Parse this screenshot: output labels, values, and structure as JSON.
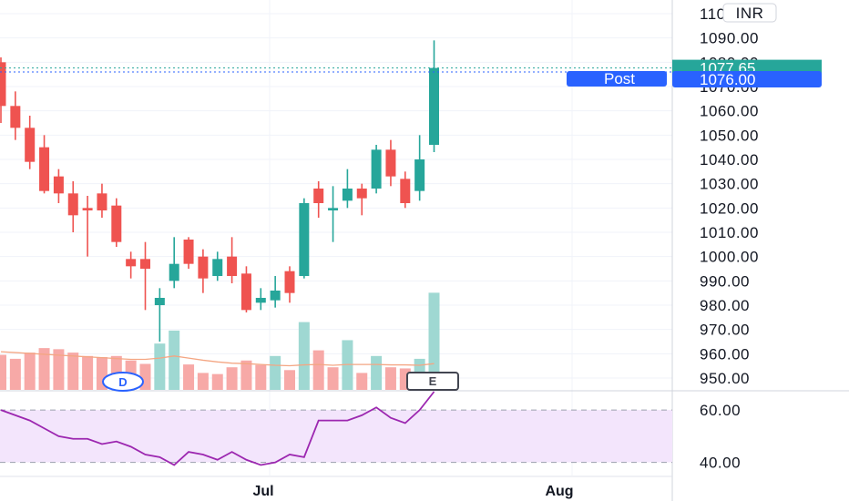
{
  "chart_data": {
    "type": "candlestick",
    "currency": "INR",
    "price_axis": {
      "min": 950,
      "max": 1100,
      "step": 10,
      "labels": [
        "1100.00",
        "1090.00",
        "1080.00",
        "1070.00",
        "1060.00",
        "1050.00",
        "1040.00",
        "1030.00",
        "1020.00",
        "1010.00",
        "1000.00",
        "990.00",
        "980.00",
        "970.00",
        "960.00",
        "950.00"
      ]
    },
    "x_labels": [
      "Jul",
      "Aug"
    ],
    "last_price": {
      "label": "1077.65",
      "value": 1077.65,
      "color": "#26a69a"
    },
    "post_price": {
      "name": "Post",
      "label": "1076.00",
      "value": 1076.0,
      "color": "#2962ff"
    },
    "colors": {
      "up": "#26a69a",
      "down": "#ef5350",
      "up_volume": "#9fd8d2",
      "down_volume": "#f7a9a7",
      "volume_ma": "#f4a683",
      "rsi_line": "#9c27b0",
      "rsi_band": "#f3e5fc"
    },
    "candles": [
      {
        "o": 1080,
        "h": 1082,
        "l": 1055,
        "c": 1062
      },
      {
        "o": 1062,
        "h": 1068,
        "l": 1048,
        "c": 1053
      },
      {
        "o": 1053,
        "h": 1058,
        "l": 1036,
        "c": 1039
      },
      {
        "o": 1045,
        "h": 1050,
        "l": 1026,
        "c": 1027
      },
      {
        "o": 1033,
        "h": 1036,
        "l": 1022,
        "c": 1026
      },
      {
        "o": 1026,
        "h": 1031,
        "l": 1010,
        "c": 1017
      },
      {
        "o": 1020,
        "h": 1025,
        "l": 1000,
        "c": 1019
      },
      {
        "o": 1026,
        "h": 1030,
        "l": 1016,
        "c": 1019
      },
      {
        "o": 1021,
        "h": 1024,
        "l": 1004,
        "c": 1006
      },
      {
        "o": 999,
        "h": 1002,
        "l": 991,
        "c": 996
      },
      {
        "o": 999,
        "h": 1006,
        "l": 978,
        "c": 995
      },
      {
        "o": 980,
        "h": 987,
        "l": 965,
        "c": 983
      },
      {
        "o": 990,
        "h": 1008,
        "l": 987,
        "c": 997
      },
      {
        "o": 1007,
        "h": 1008,
        "l": 995,
        "c": 997
      },
      {
        "o": 1000,
        "h": 1003,
        "l": 985,
        "c": 991
      },
      {
        "o": 992,
        "h": 1002,
        "l": 990,
        "c": 999
      },
      {
        "o": 1000,
        "h": 1008,
        "l": 989,
        "c": 992
      },
      {
        "o": 993,
        "h": 996,
        "l": 977,
        "c": 978
      },
      {
        "o": 981,
        "h": 987,
        "l": 978,
        "c": 983
      },
      {
        "o": 982,
        "h": 992,
        "l": 979,
        "c": 986
      },
      {
        "o": 994,
        "h": 996,
        "l": 981,
        "c": 985
      },
      {
        "o": 992,
        "h": 1024,
        "l": 991,
        "c": 1022
      },
      {
        "o": 1028,
        "h": 1031,
        "l": 1016,
        "c": 1022
      },
      {
        "o": 1019,
        "h": 1029,
        "l": 1006,
        "c": 1020
      },
      {
        "o": 1023,
        "h": 1036,
        "l": 1020,
        "c": 1028
      },
      {
        "o": 1028,
        "h": 1030,
        "l": 1017,
        "c": 1024
      },
      {
        "o": 1028,
        "h": 1046,
        "l": 1026,
        "c": 1044
      },
      {
        "o": 1044,
        "h": 1048,
        "l": 1029,
        "c": 1033
      },
      {
        "o": 1032,
        "h": 1035,
        "l": 1020,
        "c": 1022
      },
      {
        "o": 1027,
        "h": 1050,
        "l": 1023,
        "c": 1040
      },
      {
        "o": 1046,
        "h": 1089,
        "l": 1043,
        "c": 1077.65
      }
    ],
    "volume": [
      {
        "v": 0.62,
        "up": false
      },
      {
        "v": 0.55,
        "up": false
      },
      {
        "v": 0.66,
        "up": false
      },
      {
        "v": 0.74,
        "up": false
      },
      {
        "v": 0.72,
        "up": false
      },
      {
        "v": 0.66,
        "up": false
      },
      {
        "v": 0.6,
        "up": false
      },
      {
        "v": 0.58,
        "up": false
      },
      {
        "v": 0.6,
        "up": false
      },
      {
        "v": 0.52,
        "up": false
      },
      {
        "v": 0.46,
        "up": false
      },
      {
        "v": 0.82,
        "up": true
      },
      {
        "v": 1.05,
        "up": true
      },
      {
        "v": 0.45,
        "up": false
      },
      {
        "v": 0.3,
        "up": false
      },
      {
        "v": 0.28,
        "up": false
      },
      {
        "v": 0.4,
        "up": false
      },
      {
        "v": 0.52,
        "up": false
      },
      {
        "v": 0.44,
        "up": false
      },
      {
        "v": 0.6,
        "up": true
      },
      {
        "v": 0.35,
        "up": false
      },
      {
        "v": 1.2,
        "up": true
      },
      {
        "v": 0.7,
        "up": false
      },
      {
        "v": 0.4,
        "up": false
      },
      {
        "v": 0.88,
        "up": true
      },
      {
        "v": 0.3,
        "up": false
      },
      {
        "v": 0.6,
        "up": true
      },
      {
        "v": 0.4,
        "up": false
      },
      {
        "v": 0.38,
        "up": false
      },
      {
        "v": 0.55,
        "up": true
      },
      {
        "v": 1.72,
        "up": true
      }
    ],
    "volume_ma": [
      0.9,
      0.88,
      0.86,
      0.84,
      0.82,
      0.8,
      0.78,
      0.76,
      0.74,
      0.72,
      0.72,
      0.75,
      0.8,
      0.75,
      0.7,
      0.66,
      0.63,
      0.62,
      0.6,
      0.58,
      0.57,
      0.59,
      0.6,
      0.58,
      0.6,
      0.6,
      0.6,
      0.59,
      0.59,
      0.58,
      0.62
    ],
    "rsi": {
      "axis_labels": [
        "60.00",
        "40.00"
      ],
      "band": [
        40,
        60
      ],
      "min": 35,
      "max": 67,
      "values": [
        60,
        58,
        56,
        53,
        50,
        49,
        49,
        47,
        48,
        46,
        43,
        42,
        39,
        44,
        43,
        41,
        44,
        41,
        39,
        40,
        43,
        42,
        56,
        56,
        56,
        58,
        61,
        57,
        55,
        60,
        67
      ]
    },
    "badges": {
      "dividend": "D",
      "earnings": "E"
    }
  }
}
